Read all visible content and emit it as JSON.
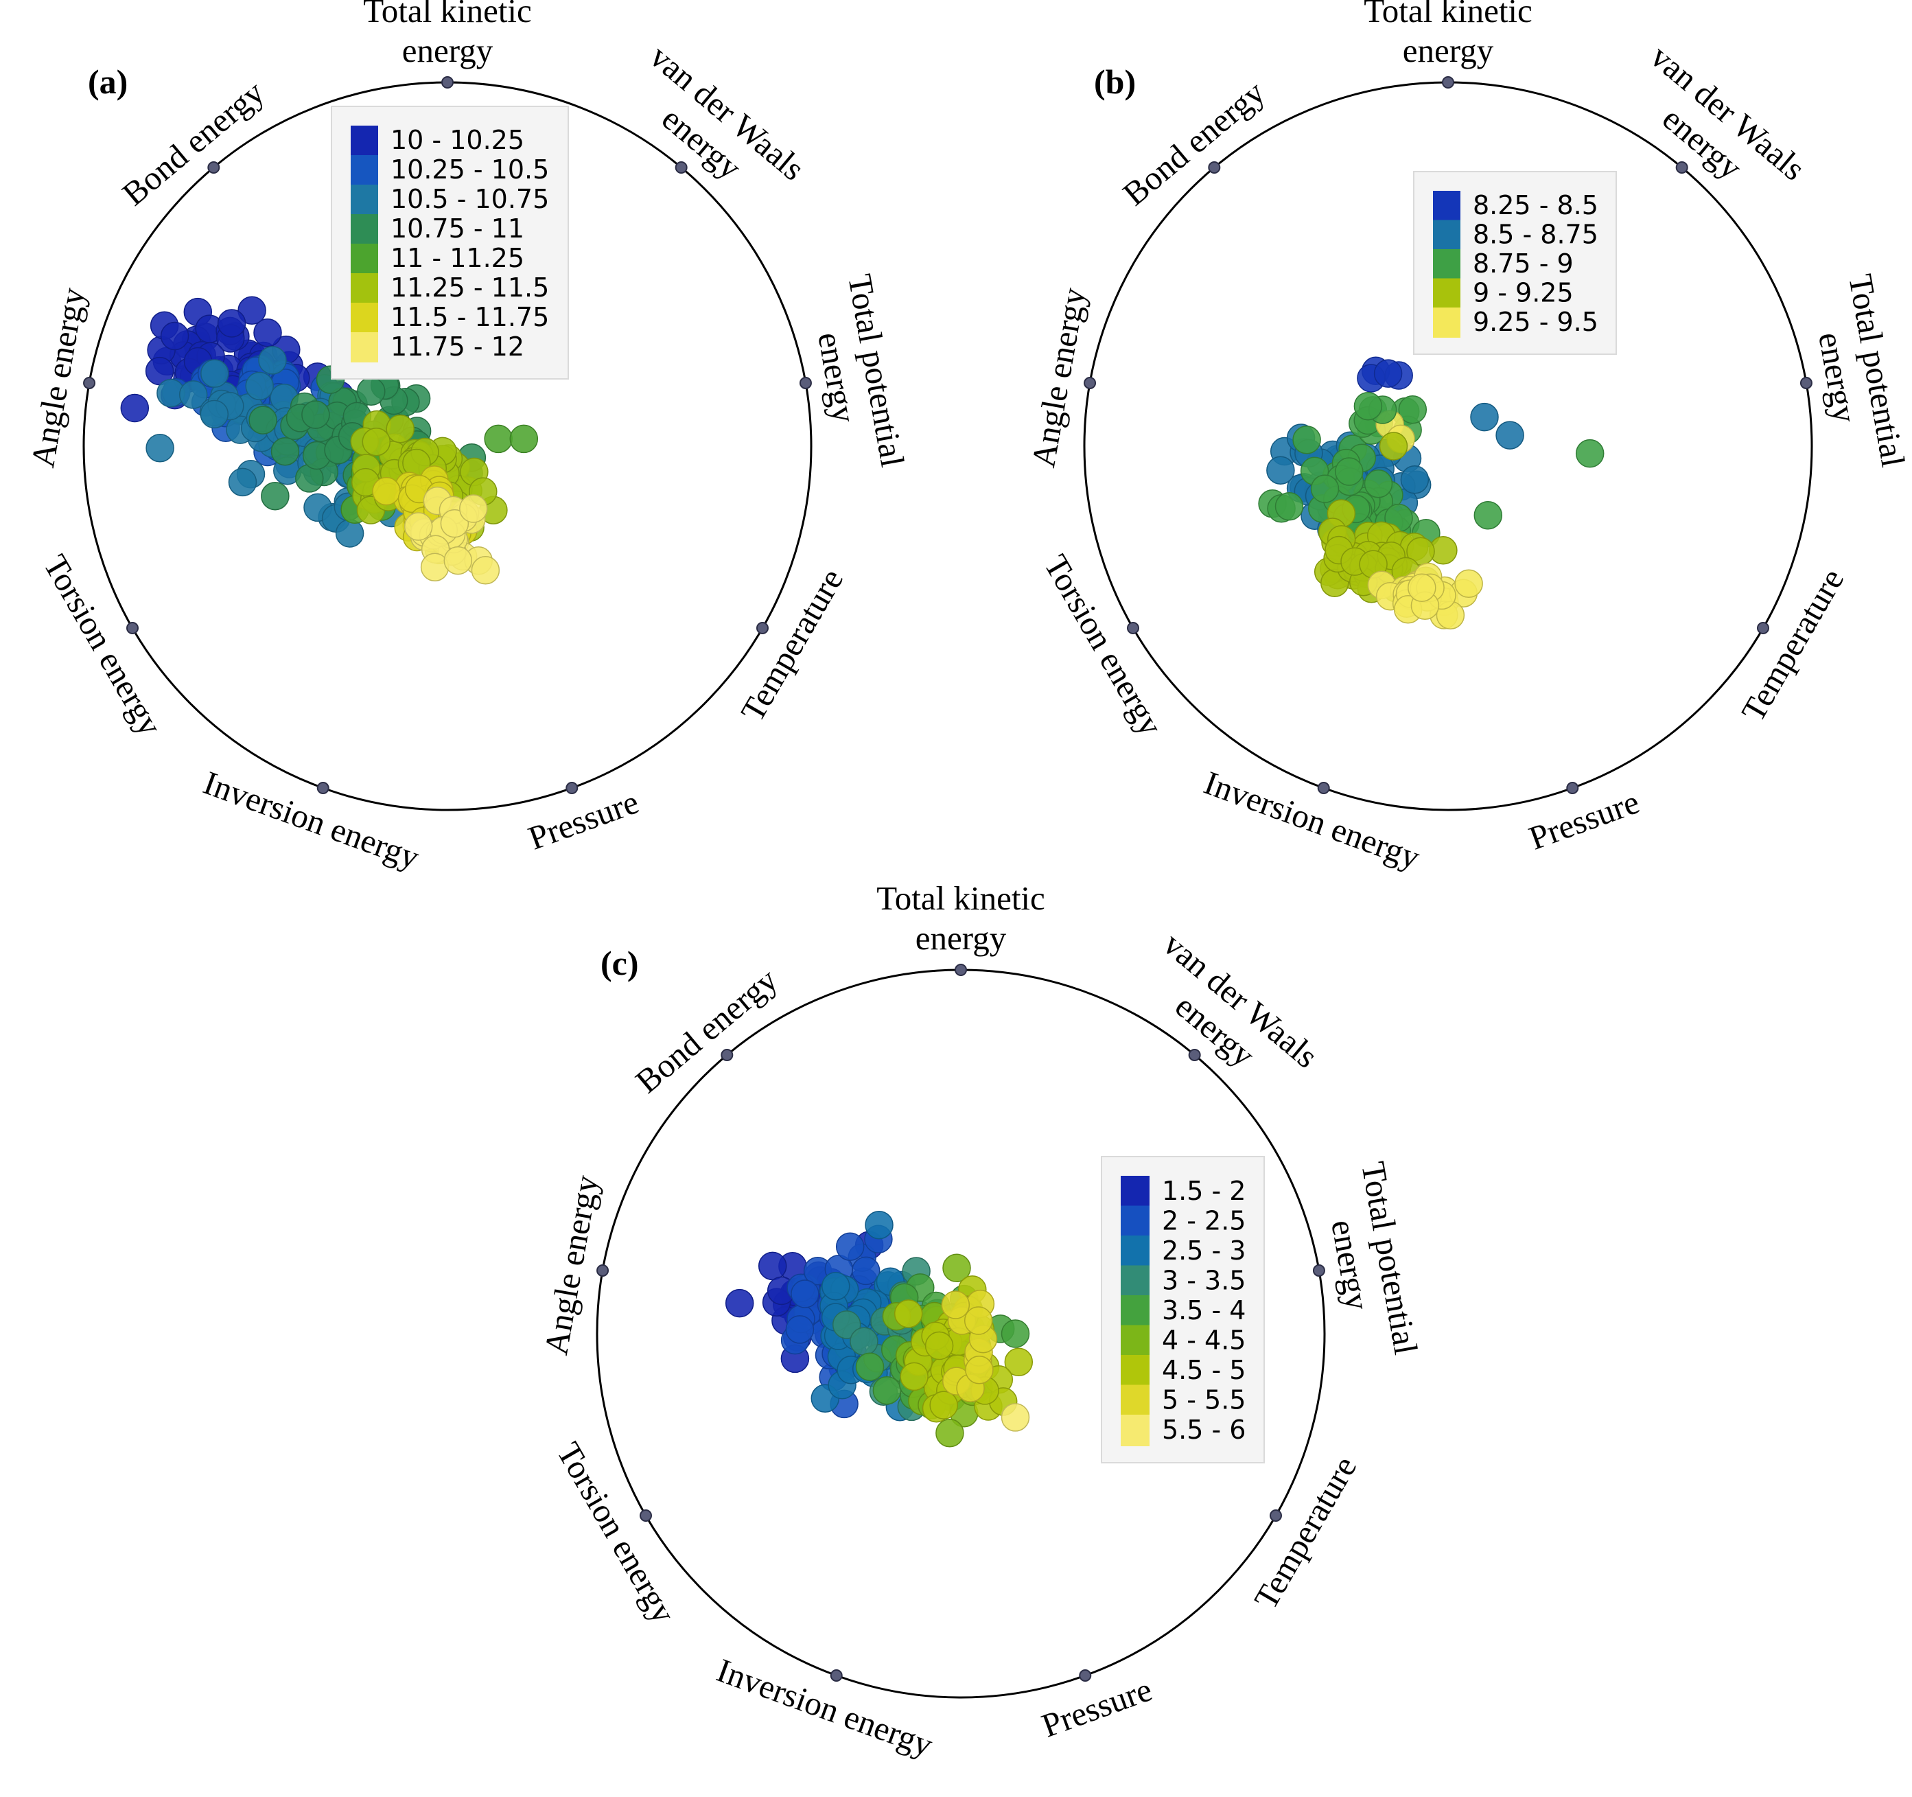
{
  "chart_data": [
    {
      "type": "scatter",
      "subtype": "radviz",
      "panel_label": "(a)",
      "anchors": [
        "Angle energy",
        "Bond energy",
        "Total kinetic energy",
        "van der Waals energy",
        "Total potential energy",
        "Temperature",
        "Pressure",
        "Inversion energy",
        "Torsion energy"
      ],
      "legend": {
        "placement": "upper-center",
        "entries": [
          "10 - 10.25",
          "10.25 - 10.5",
          "10.5 - 10.75",
          "10.75 - 11",
          "11 - 11.25",
          "11.25 - 11.5",
          "11.5 - 11.75",
          "11.75 - 12"
        ],
        "colors": [
          "#1426b0",
          "#1656c0",
          "#1e78a4",
          "#2e8d55",
          "#4ca42e",
          "#a3c20e",
          "#dcd61e",
          "#f6ea6e"
        ]
      },
      "clusters": [
        {
          "class_index": 0,
          "center": [
            -0.6,
            0.22
          ],
          "spread": [
            0.13,
            0.07
          ],
          "slope": -0.3,
          "count": 60
        },
        {
          "class_index": 1,
          "center": [
            -0.5,
            0.13
          ],
          "spread": [
            0.12,
            0.06
          ],
          "slope": -0.3,
          "count": 40
        },
        {
          "class_index": 2,
          "center": [
            -0.4,
            0.02
          ],
          "spread": [
            0.15,
            0.07
          ],
          "slope": -0.3,
          "count": 70
        },
        {
          "class_index": 3,
          "center": [
            -0.22,
            0.0
          ],
          "spread": [
            0.13,
            0.07
          ],
          "slope": -0.25,
          "count": 55
        },
        {
          "class_index": 4,
          "center": [
            -0.14,
            -0.08
          ],
          "spread": [
            0.09,
            0.06
          ],
          "slope": -0.25,
          "count": 25
        },
        {
          "class_index": 5,
          "center": [
            -0.07,
            -0.1
          ],
          "spread": [
            0.09,
            0.06
          ],
          "slope": -0.25,
          "count": 45
        },
        {
          "class_index": 6,
          "center": [
            -0.04,
            -0.18
          ],
          "spread": [
            0.08,
            0.05
          ],
          "slope": -0.25,
          "count": 35
        },
        {
          "class_index": 7,
          "center": [
            0.01,
            -0.24
          ],
          "spread": [
            0.05,
            0.04
          ],
          "slope": -0.25,
          "count": 25
        }
      ],
      "points": [
        {
          "x": 0.14,
          "y": 0.02,
          "class_index": 4
        },
        {
          "x": 0.21,
          "y": 0.02,
          "class_index": 4
        }
      ]
    },
    {
      "type": "scatter",
      "subtype": "radviz",
      "panel_label": "(b)",
      "anchors": [
        "Angle energy",
        "Bond energy",
        "Total kinetic energy",
        "van der Waals energy",
        "Total potential energy",
        "Temperature",
        "Pressure",
        "Inversion energy",
        "Torsion energy"
      ],
      "legend": {
        "placement": "upper-center",
        "entries": [
          "8.25 - 8.5",
          "8.5 - 8.75",
          "8.75 - 9",
          "9 - 9.25",
          "9.25 - 9.5"
        ],
        "colors": [
          "#1436b8",
          "#1a73a6",
          "#3ea045",
          "#a8c20c",
          "#f4e85a"
        ]
      },
      "clusters": [
        {
          "class_index": 0,
          "center": [
            -0.17,
            0.2
          ],
          "spread": [
            0.03,
            0.01
          ],
          "slope": 0,
          "count": 4
        },
        {
          "class_index": 1,
          "center": [
            -0.27,
            -0.1
          ],
          "spread": [
            0.08,
            0.06
          ],
          "slope": -0.2,
          "count": 55
        },
        {
          "class_index": 2,
          "center": [
            -0.25,
            -0.17
          ],
          "spread": [
            0.08,
            0.07
          ],
          "slope": -0.2,
          "count": 45
        },
        {
          "class_index": 2,
          "center": [
            -0.19,
            0.09
          ],
          "spread": [
            0.04,
            0.03
          ],
          "slope": 0,
          "count": 8
        },
        {
          "class_index": 3,
          "center": [
            -0.21,
            -0.32
          ],
          "spread": [
            0.08,
            0.04
          ],
          "slope": -0.1,
          "count": 45
        },
        {
          "class_index": 4,
          "center": [
            -0.06,
            -0.41
          ],
          "spread": [
            0.06,
            0.03
          ],
          "slope": -0.1,
          "count": 25
        }
      ],
      "points": [
        {
          "x": -0.16,
          "y": 0.06,
          "class_index": 4
        },
        {
          "x": -0.13,
          "y": 0.02,
          "class_index": 4
        },
        {
          "x": -0.15,
          "y": 0.0,
          "class_index": 3
        },
        {
          "x": -0.18,
          "y": 0.1,
          "class_index": 2
        },
        {
          "x": -0.22,
          "y": 0.11,
          "class_index": 2
        },
        {
          "x": 0.1,
          "y": 0.08,
          "class_index": 1
        },
        {
          "x": 0.17,
          "y": 0.03,
          "class_index": 1
        },
        {
          "x": 0.39,
          "y": -0.02,
          "class_index": 2
        },
        {
          "x": 0.11,
          "y": -0.19,
          "class_index": 2
        }
      ]
    },
    {
      "type": "scatter",
      "subtype": "radviz",
      "panel_label": "(c)",
      "anchors": [
        "Angle energy",
        "Bond energy",
        "Total kinetic energy",
        "van der Waals energy",
        "Total potential energy",
        "Temperature",
        "Pressure",
        "Inversion energy",
        "Torsion energy"
      ],
      "legend": {
        "placement": "right",
        "entries": [
          "1.5 - 2",
          "2 - 2.5",
          "2.5 - 3",
          "3 - 3.5",
          "3.5 - 4",
          "4 - 4.5",
          "4.5 - 5",
          "5 - 5.5",
          "5.5 - 6"
        ],
        "colors": [
          "#1426b0",
          "#1650c0",
          "#1272ac",
          "#328c76",
          "#44a23e",
          "#7cb618",
          "#b0c60a",
          "#dfd82a",
          "#f6ea70"
        ]
      },
      "clusters": [
        {
          "class_index": 0,
          "center": [
            -0.42,
            0.08
          ],
          "spread": [
            0.07,
            0.07
          ],
          "slope": 0,
          "count": 30
        },
        {
          "class_index": 1,
          "center": [
            -0.32,
            0.07
          ],
          "spread": [
            0.09,
            0.1
          ],
          "slope": 0,
          "count": 40
        },
        {
          "class_index": 2,
          "center": [
            -0.22,
            0.0
          ],
          "spread": [
            0.1,
            0.1
          ],
          "slope": 0,
          "count": 40
        },
        {
          "class_index": 3,
          "center": [
            -0.14,
            -0.03
          ],
          "spread": [
            0.08,
            0.09
          ],
          "slope": 0,
          "count": 30
        },
        {
          "class_index": 4,
          "center": [
            -0.08,
            -0.03
          ],
          "spread": [
            0.08,
            0.09
          ],
          "slope": 0,
          "count": 30
        },
        {
          "class_index": 5,
          "center": [
            -0.04,
            -0.06
          ],
          "spread": [
            0.07,
            0.09
          ],
          "slope": 0,
          "count": 25
        },
        {
          "class_index": 6,
          "center": [
            -0.01,
            -0.08
          ],
          "spread": [
            0.06,
            0.09
          ],
          "slope": 0,
          "count": 30
        },
        {
          "class_index": 7,
          "center": [
            0.04,
            -0.04
          ],
          "spread": [
            0.03,
            0.07
          ],
          "slope": 0,
          "count": 10
        }
      ],
      "points": [
        {
          "x": 0.15,
          "y": 0.0,
          "class_index": 4
        },
        {
          "x": 0.15,
          "y": -0.23,
          "class_index": 8
        }
      ]
    }
  ]
}
